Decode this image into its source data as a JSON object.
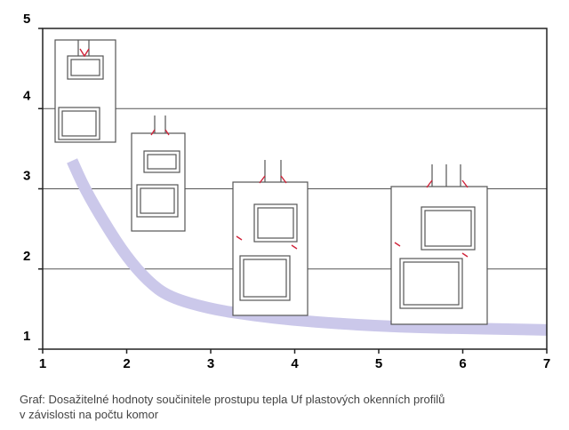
{
  "chart_data": {
    "type": "line",
    "title": "",
    "xlabel": "",
    "ylabel": "",
    "xlim": [
      1,
      7
    ],
    "ylim": [
      1,
      5
    ],
    "x_ticks": [
      "1",
      "2",
      "3",
      "4",
      "5",
      "6",
      "7"
    ],
    "y_ticks": [
      "1",
      "2",
      "3",
      "4",
      "5"
    ],
    "gridlines_y": [
      2,
      3,
      4
    ],
    "series": [
      {
        "x": [
          1.35,
          1.5,
          1.75,
          2.0,
          2.25,
          2.5,
          3.0,
          3.5,
          4.0,
          4.5,
          5.0,
          5.5,
          6.0,
          6.5,
          7.0
        ],
        "y": [
          3.35,
          3.0,
          2.55,
          2.15,
          1.85,
          1.65,
          1.5,
          1.42,
          1.36,
          1.32,
          1.29,
          1.27,
          1.26,
          1.25,
          1.24
        ]
      }
    ],
    "series_color": "#cbc8ea",
    "profiles_drawn": 4
  },
  "caption": {
    "line1": "Graf: Dosažitelné hodnoty součinitele prostupu tepla Uf plastových okenních profilů",
    "line2": "v závislosti na počtu komor"
  }
}
